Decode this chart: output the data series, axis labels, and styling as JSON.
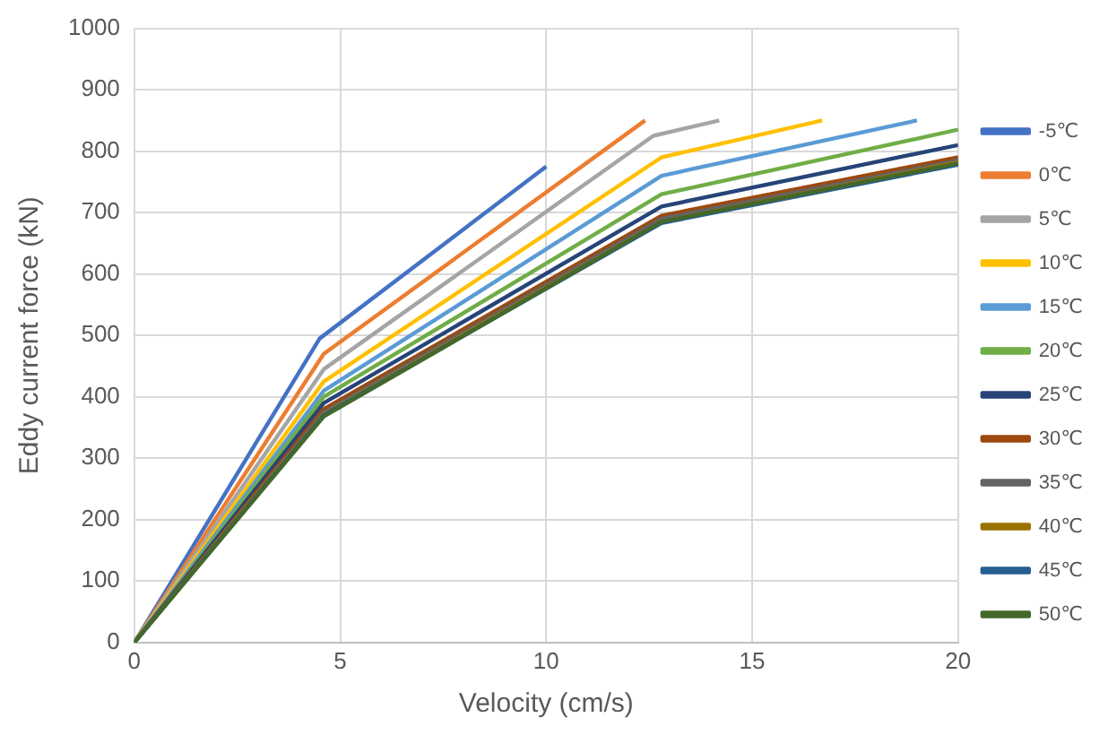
{
  "chart_data": {
    "type": "line",
    "xlabel": "Velocity (cm/s)",
    "ylabel": "Eddy current force (kN)",
    "xlim": [
      0,
      20
    ],
    "xticks": [
      0,
      5,
      10,
      15,
      20
    ],
    "ylim": [
      0,
      1000
    ],
    "yticks": [
      0,
      100,
      200,
      300,
      400,
      500,
      600,
      700,
      800,
      900,
      1000
    ],
    "grid": true,
    "legend": "right",
    "marker": "none",
    "line_style": "solid",
    "series": [
      {
        "name": "-5℃",
        "color": "#4472c4",
        "x": [
          0,
          4.5,
          10
        ],
        "values": [
          0,
          495,
          775
        ]
      },
      {
        "name": "0℃",
        "color": "#ed7d31",
        "x": [
          0,
          4.6,
          12.4
        ],
        "values": [
          0,
          470,
          850
        ]
      },
      {
        "name": "5℃",
        "color": "#a5a5a5",
        "x": [
          0,
          4.6,
          12.6,
          14.2
        ],
        "values": [
          0,
          445,
          825,
          850
        ]
      },
      {
        "name": "10℃",
        "color": "#ffc000",
        "x": [
          0,
          4.6,
          12.8,
          16.7
        ],
        "values": [
          0,
          425,
          790,
          850
        ]
      },
      {
        "name": "15℃",
        "color": "#5b9bd5",
        "x": [
          0,
          4.6,
          12.8,
          19
        ],
        "values": [
          0,
          410,
          760,
          850
        ]
      },
      {
        "name": "20℃",
        "color": "#70ad47",
        "x": [
          0,
          4.6,
          12.8,
          20
        ],
        "values": [
          0,
          400,
          730,
          835
        ]
      },
      {
        "name": "25℃",
        "color": "#264478",
        "x": [
          0,
          4.6,
          12.8,
          20
        ],
        "values": [
          0,
          390,
          710,
          810
        ]
      },
      {
        "name": "30℃",
        "color": "#9e480e",
        "x": [
          0,
          4.6,
          12.8,
          20
        ],
        "values": [
          0,
          380,
          695,
          790
        ]
      },
      {
        "name": "35℃",
        "color": "#636363",
        "x": [
          0,
          4.6,
          12.8,
          20
        ],
        "values": [
          0,
          375,
          690,
          785
        ]
      },
      {
        "name": "40℃",
        "color": "#997300",
        "x": [
          0,
          4.6,
          12.8,
          20
        ],
        "values": [
          0,
          372,
          685,
          782
        ]
      },
      {
        "name": "45℃",
        "color": "#255e91",
        "x": [
          0,
          4.6,
          12.8,
          20
        ],
        "values": [
          0,
          370,
          683,
          778
        ]
      },
      {
        "name": "50℃",
        "color": "#43682b",
        "x": [
          0,
          4.6,
          12.8,
          20
        ],
        "values": [
          0,
          368,
          685,
          780
        ]
      }
    ]
  }
}
